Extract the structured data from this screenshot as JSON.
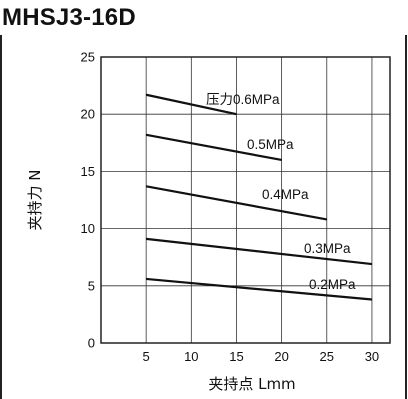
{
  "title": "MHSJ3-16D",
  "chart_data": {
    "type": "line",
    "title": "MHSJ3-16D",
    "xlabel": "夹持点 Lmm",
    "ylabel": "夹持力 N",
    "xlim": [
      0,
      32
    ],
    "ylim": [
      0,
      25
    ],
    "xticks": [
      5,
      10,
      15,
      20,
      25,
      30
    ],
    "yticks": [
      0,
      5,
      10,
      15,
      20,
      25
    ],
    "grid": true,
    "series": [
      {
        "name": "压力0.6MPa",
        "x": [
          5,
          15
        ],
        "y": [
          21.7,
          20.0
        ]
      },
      {
        "name": "0.5MPa",
        "x": [
          5,
          20
        ],
        "y": [
          18.2,
          16.0
        ]
      },
      {
        "name": "0.4MPa",
        "x": [
          5,
          25
        ],
        "y": [
          13.7,
          10.8
        ]
      },
      {
        "name": "0.3MPa",
        "x": [
          5,
          30
        ],
        "y": [
          9.1,
          6.9
        ]
      },
      {
        "name": "0.2MPa",
        "x": [
          5,
          30
        ],
        "y": [
          5.6,
          3.8
        ]
      }
    ]
  }
}
